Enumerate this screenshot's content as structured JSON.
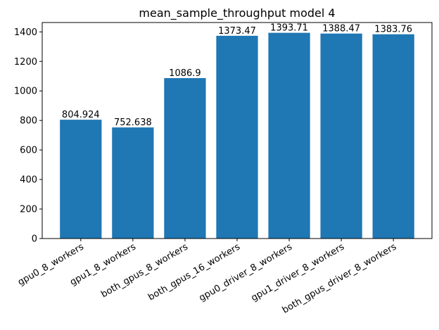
{
  "chart_data": {
    "type": "bar",
    "title": "mean_sample_throughput model 4",
    "xlabel": "",
    "ylabel": "",
    "categories": [
      "gpu0_8_workers",
      "gpu1_8_workers",
      "both_gpus_8_workers",
      "both_gpus_16_workers",
      "gpu0_driver_8_workers",
      "gpu1_driver_8_workers",
      "both_gpus_driver_8_workers"
    ],
    "values": [
      804.924,
      752.638,
      1086.9,
      1373.47,
      1393.71,
      1388.47,
      1383.76
    ],
    "value_labels": [
      "804.924",
      "752.638",
      "1086.9",
      "1373.47",
      "1393.71",
      "1388.47",
      "1383.76"
    ],
    "ylim": [
      0,
      1463.4
    ],
    "yticks": [
      0,
      200,
      400,
      600,
      800,
      1000,
      1200,
      1400
    ],
    "ytick_labels": [
      "0",
      "200",
      "400",
      "600",
      "800",
      "1000",
      "1200",
      "1400"
    ],
    "bar_color": "#1f77b4",
    "grid": false,
    "legend": "none"
  }
}
